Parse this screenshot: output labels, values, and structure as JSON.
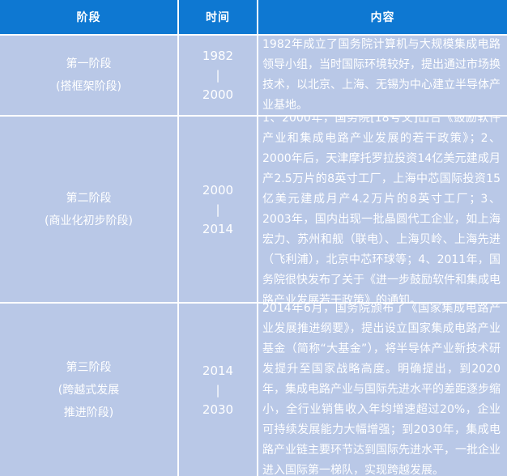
{
  "colors": {
    "header_bg": "#0e78d2",
    "cell_bg": "#b9c8e7",
    "grid_line": "#ffffff",
    "text": "#ffffff"
  },
  "table": {
    "columns": [
      {
        "label": "阶段"
      },
      {
        "label": "时间"
      },
      {
        "label": "内容"
      }
    ],
    "rows": [
      {
        "stage_line1": "第一阶段",
        "stage_line2": "(搭框架阶段)",
        "time_start": "1982",
        "time_sep": "|",
        "time_end": "2000",
        "content": "1982年成立了国务院计算机与大规模集成电路领导小组，当时国际环境较好，提出通过市场换技术，以北京、上海、无锡为中心建立半导体产业基地。"
      },
      {
        "stage_line1": "第二阶段",
        "stage_line2": "(商业化初步阶段)",
        "time_start": "2000",
        "time_sep": "|",
        "time_end": "2014",
        "content": "1、2000年，国务院[18号文]出台《鼓励软件产业和集成电路产业发展的若干政策》；2、2000年后，天津摩托罗拉投资14亿美元建成月产2.5万片的8英寸工厂，上海中芯国际投资15亿美元建成月产4.2万片的8英寸工厂；3、2003年，国内出现一批晶圆代工企业，如上海宏力、苏州和舰（联电）、上海贝岭、上海先进（飞利浦），北京中芯环球等；4、2011年，国务院很快发布了关于《进一步鼓励软件和集成电路产业发展若干政策》的通知。"
      },
      {
        "stage_line1": "第三阶段",
        "stage_line2": "(跨越式发展",
        "stage_line3": "推进阶段)",
        "time_start": "2014",
        "time_sep": "|",
        "time_end": "2030",
        "content": "2014年6月，国务院颁布了《国家集成电路产业发展推进纲要》，提出设立国家集成电路产业基金（简称“大基金”），将半导体产业新技术研发提升至国家战略高度。明确提出，到2020年，集成电路产业与国际先进水平的差距逐步缩小，全行业销售收入年均增速超过20%，企业可持续发展能力大幅增强；到2030年，集成电路产业链主要环节达到国际先进水平，一批企业进入国际第一梯队，实现跨越发展。"
      }
    ]
  }
}
